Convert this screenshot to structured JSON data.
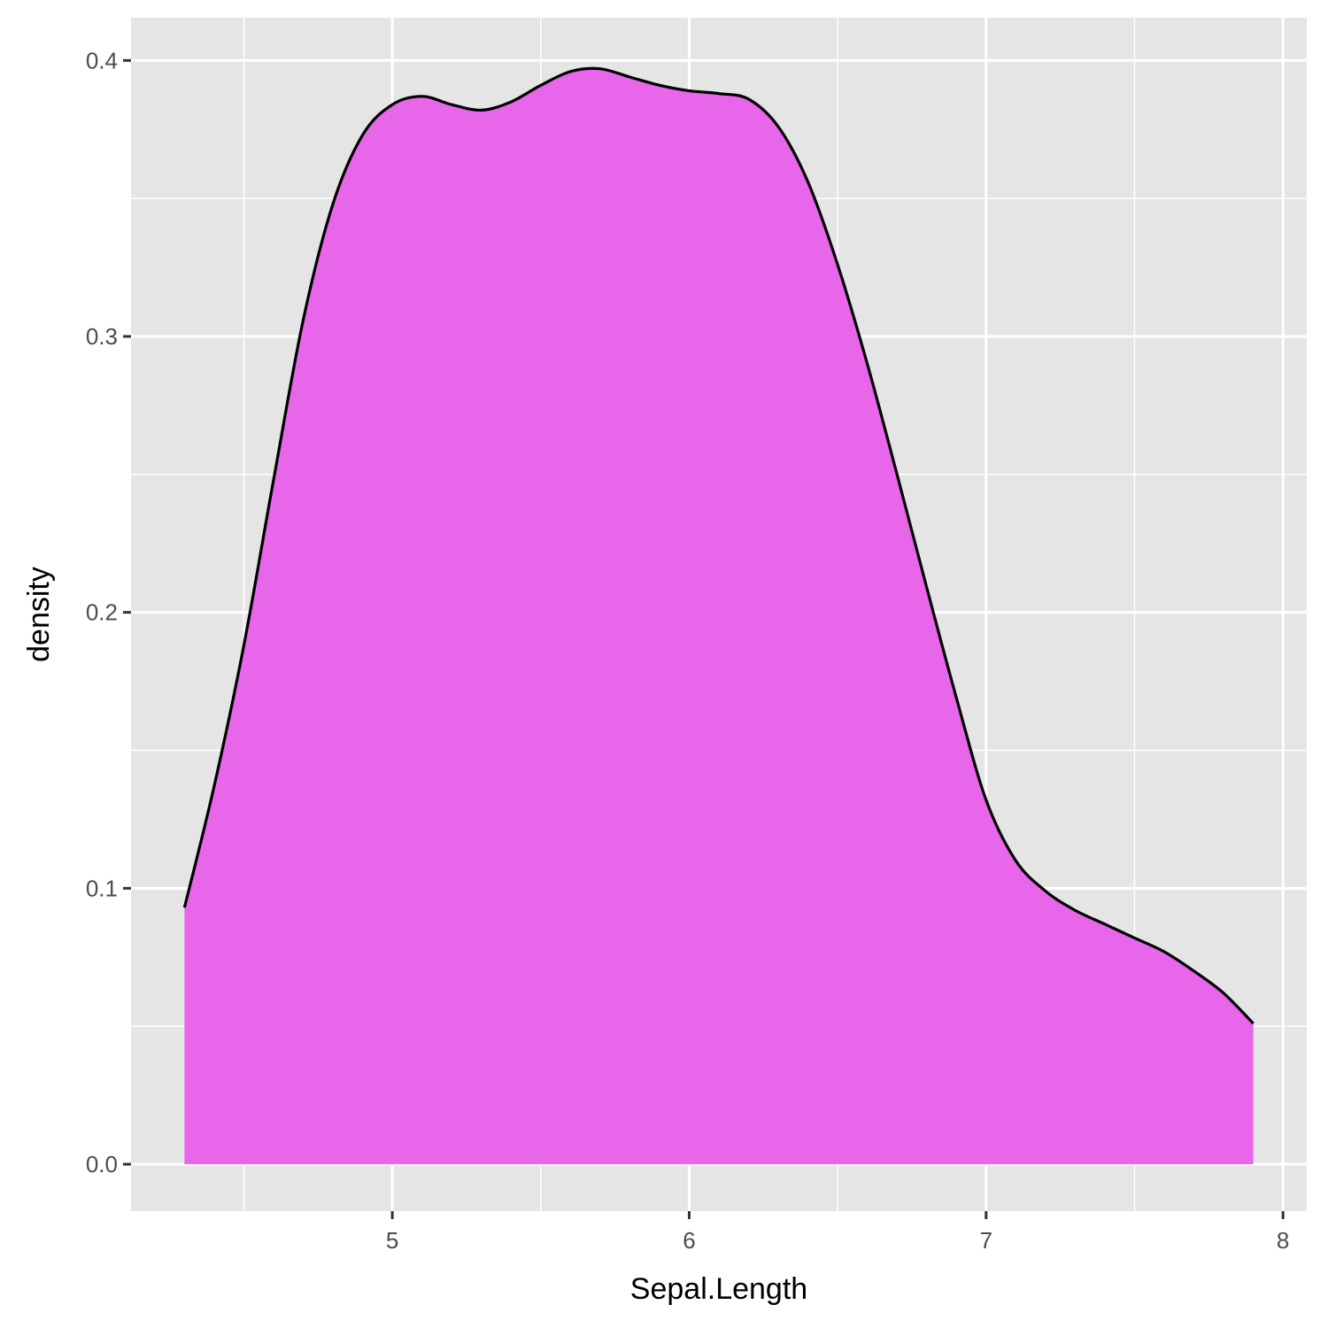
{
  "chart_data": {
    "type": "area",
    "title": "",
    "xlabel": "Sepal.Length",
    "ylabel": "density",
    "xlim": [
      4.12,
      8.08
    ],
    "ylim": [
      -0.017,
      0.4155
    ],
    "x_ticks": [
      5,
      6,
      7,
      8
    ],
    "x_minor": [
      4.5,
      5.5,
      6.5,
      7.5
    ],
    "y_ticks": [
      0.0,
      0.1,
      0.2,
      0.3,
      0.4
    ],
    "y_minor": [
      0.05,
      0.15,
      0.25,
      0.35
    ],
    "y_tick_labels": [
      "0.0",
      "0.1",
      "0.2",
      "0.3",
      "0.4"
    ],
    "x_tick_labels": [
      "5",
      "6",
      "7",
      "8"
    ],
    "grid": true,
    "colors": {
      "fill": "#E766EA",
      "line": "#000000",
      "panel": "#E5E5E5",
      "grid": "#FFFFFF"
    },
    "series": [
      {
        "x": [
          4.3,
          4.4,
          4.5,
          4.6,
          4.7,
          4.8,
          4.9,
          5.0,
          5.1,
          5.2,
          5.3,
          5.4,
          5.5,
          5.6,
          5.7,
          5.8,
          5.9,
          6.0,
          6.1,
          6.2,
          6.3,
          6.4,
          6.5,
          6.6,
          6.7,
          6.8,
          6.9,
          7.0,
          7.1,
          7.2,
          7.3,
          7.4,
          7.5,
          7.6,
          7.7,
          7.8,
          7.9
        ],
        "y": [
          0.093,
          0.137,
          0.188,
          0.248,
          0.306,
          0.348,
          0.373,
          0.384,
          0.387,
          0.384,
          0.382,
          0.385,
          0.391,
          0.396,
          0.397,
          0.394,
          0.391,
          0.389,
          0.388,
          0.386,
          0.376,
          0.356,
          0.326,
          0.29,
          0.25,
          0.209,
          0.169,
          0.132,
          0.11,
          0.099,
          0.092,
          0.087,
          0.082,
          0.077,
          0.07,
          0.062,
          0.051
        ]
      }
    ]
  }
}
